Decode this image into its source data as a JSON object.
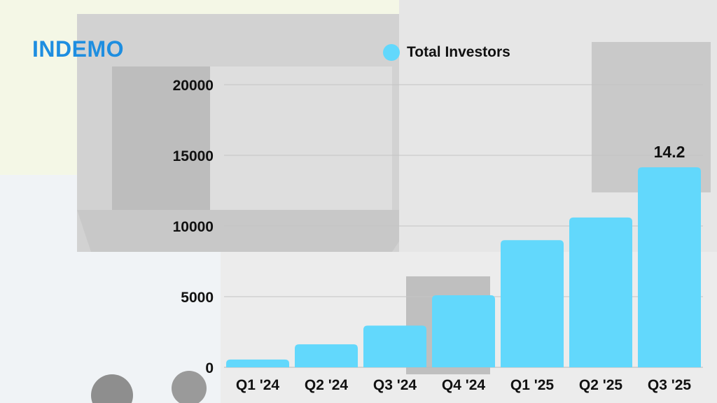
{
  "logo": {
    "text": "INDEMO"
  },
  "chart_data": {
    "type": "bar",
    "title": "",
    "xlabel": "",
    "ylabel": "",
    "categories": [
      "Q1 '24",
      "Q2 '24",
      "Q3 '24",
      "Q4 '24",
      "Q1 '25",
      "Q2 '25",
      "Q3 '25"
    ],
    "series": [
      {
        "name": "Total Investors",
        "color": "#62d8fc",
        "values": [
          550,
          1630,
          2950,
          5100,
          9000,
          10600,
          14150
        ]
      }
    ],
    "data_labels": [
      {
        "category": "Q3 '25",
        "text": "14.2"
      }
    ],
    "ylim": [
      0,
      20000
    ],
    "yticks": [
      0,
      5000,
      10000,
      15000,
      20000
    ],
    "grid": true,
    "legend": "top-center"
  }
}
